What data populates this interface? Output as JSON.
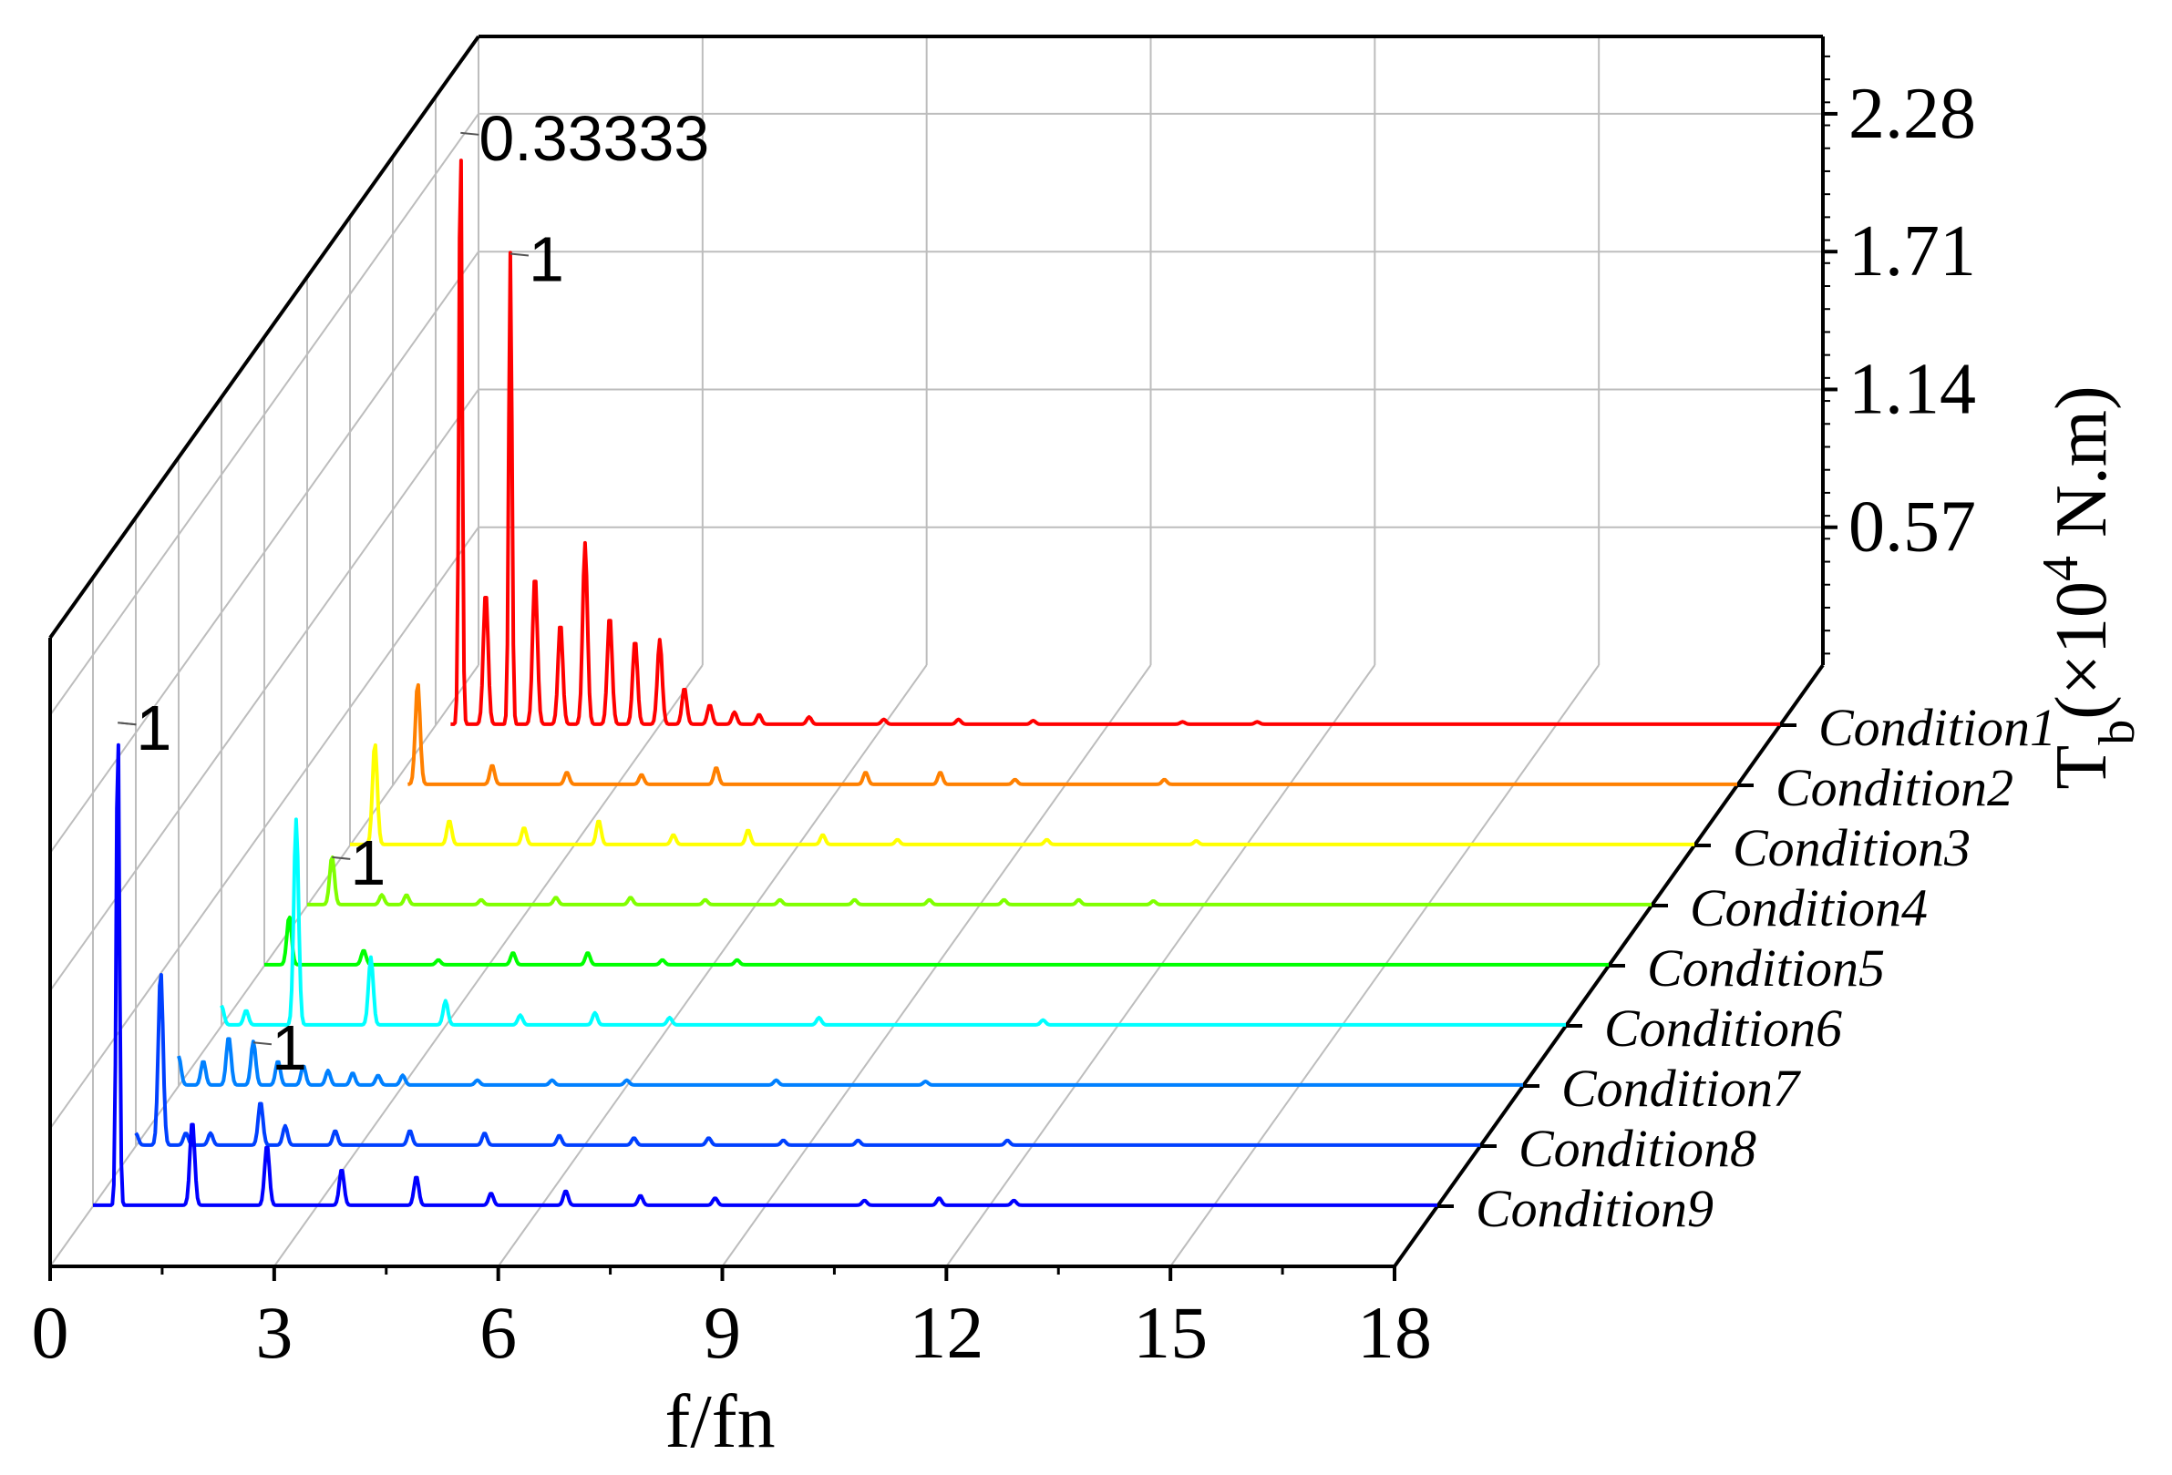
{
  "chart_data": {
    "type": "line",
    "subtype": "3d-waterfall",
    "xlabel": "f/fn",
    "ylabel": {
      "base": "T",
      "subscript": "b",
      "prefix": "(×10",
      "superscript": "4",
      "suffix": " N.m)"
    },
    "x_ticks": [
      "0",
      "3",
      "6",
      "9",
      "12",
      "15",
      "18"
    ],
    "y_ticks": [
      "0.57",
      "1.14",
      "1.71",
      "2.28"
    ],
    "xlim": [
      0,
      18
    ],
    "zlim": [
      0,
      2.6
    ],
    "grid": true,
    "series": [
      {
        "name": "Condition1",
        "color": "#ff0000",
        "peak": {
          "x": 0.33333,
          "y": 2.45
        },
        "start_x": 0.2,
        "peaks": [
          [
            0.33333,
            2.45
          ],
          [
            1,
            1.95
          ],
          [
            0.67,
            0.55
          ],
          [
            1.33,
            0.62
          ],
          [
            1.67,
            0.42
          ],
          [
            2.0,
            0.75
          ],
          [
            2.33,
            0.45
          ],
          [
            2.67,
            0.35
          ],
          [
            3.0,
            0.35
          ],
          [
            3.33,
            0.15
          ],
          [
            3.67,
            0.08
          ],
          [
            4.0,
            0.05
          ],
          [
            4.33,
            0.04
          ],
          [
            5.0,
            0.03
          ],
          [
            6.0,
            0.02
          ],
          [
            7.0,
            0.02
          ],
          [
            8.0,
            0.015
          ],
          [
            10.0,
            0.01
          ],
          [
            11.0,
            0.01
          ]
        ]
      },
      {
        "name": "Condition2",
        "color": "#ff8000",
        "start_x": 0.2,
        "peaks": [
          [
            0.33333,
            0.42
          ],
          [
            1.33,
            0.08
          ],
          [
            2.33,
            0.05
          ],
          [
            3.33,
            0.04
          ],
          [
            4.33,
            0.07
          ],
          [
            6.33,
            0.05
          ],
          [
            7.33,
            0.05
          ],
          [
            8.33,
            0.02
          ],
          [
            10.33,
            0.02
          ]
        ]
      },
      {
        "name": "Condition3",
        "color": "#ffff00",
        "start_x": 0.0,
        "peaks": [
          [
            0.33333,
            0.42
          ],
          [
            1.33,
            0.1
          ],
          [
            2.33,
            0.07
          ],
          [
            3.33,
            0.1
          ],
          [
            4.33,
            0.04
          ],
          [
            5.33,
            0.06
          ],
          [
            6.33,
            0.04
          ],
          [
            7.33,
            0.02
          ],
          [
            9.33,
            0.02
          ],
          [
            11.33,
            0.015
          ]
        ]
      },
      {
        "name": "Condition4",
        "color": "#80ff00",
        "start_x": 0.0,
        "peaks": [
          [
            0.33333,
            0.2
          ],
          [
            1.0,
            0.04
          ],
          [
            1.33,
            0.04
          ],
          [
            2.33,
            0.02
          ],
          [
            3.33,
            0.03
          ],
          [
            4.33,
            0.03
          ],
          [
            5.33,
            0.02
          ],
          [
            6.33,
            0.02
          ],
          [
            7.33,
            0.02
          ],
          [
            8.33,
            0.02
          ],
          [
            9.33,
            0.02
          ],
          [
            10.33,
            0.02
          ],
          [
            11.33,
            0.015
          ]
        ]
      },
      {
        "name": "Condition5",
        "color": "#00ff00",
        "start_x": 0.0,
        "peaks": [
          [
            0.33333,
            0.2
          ],
          [
            1.33,
            0.06
          ],
          [
            2.33,
            0.02
          ],
          [
            3.33,
            0.05
          ],
          [
            4.33,
            0.05
          ],
          [
            5.33,
            0.02
          ],
          [
            6.33,
            0.02
          ]
        ]
      },
      {
        "name": "Condition6",
        "color": "#00ffff",
        "start_x": 0.0,
        "peaks": [
          [
            0.0,
            0.08
          ],
          [
            0.33,
            0.06
          ],
          [
            1.0,
            0.85
          ],
          [
            2.0,
            0.28
          ],
          [
            3.0,
            0.1
          ],
          [
            4.0,
            0.04
          ],
          [
            5.0,
            0.05
          ],
          [
            6.0,
            0.03
          ],
          [
            8.0,
            0.03
          ],
          [
            11.0,
            0.02
          ]
        ]
      },
      {
        "name": "Condition7",
        "color": "#0080ff",
        "start_x": 0.0,
        "peaks": [
          [
            0.0,
            0.12
          ],
          [
            0.33,
            0.1
          ],
          [
            0.67,
            0.2
          ],
          [
            1.0,
            0.18
          ],
          [
            1.33,
            0.1
          ],
          [
            1.67,
            0.08
          ],
          [
            2.0,
            0.06
          ],
          [
            2.33,
            0.05
          ],
          [
            2.67,
            0.04
          ],
          [
            3.0,
            0.04
          ],
          [
            4.0,
            0.02
          ],
          [
            5.0,
            0.02
          ],
          [
            6.0,
            0.02
          ],
          [
            8.0,
            0.02
          ],
          [
            10.0,
            0.015
          ]
        ]
      },
      {
        "name": "Condition8",
        "color": "#0040ff",
        "start_x": 0.0,
        "peaks": [
          [
            0.0,
            0.05
          ],
          [
            0.33333,
            0.72
          ],
          [
            0.67,
            0.05
          ],
          [
            1.0,
            0.05
          ],
          [
            1.67,
            0.18
          ],
          [
            2.0,
            0.08
          ],
          [
            2.67,
            0.06
          ],
          [
            3.67,
            0.06
          ],
          [
            4.67,
            0.05
          ],
          [
            5.67,
            0.04
          ],
          [
            6.67,
            0.03
          ],
          [
            7.67,
            0.03
          ],
          [
            8.67,
            0.02
          ],
          [
            9.67,
            0.02
          ],
          [
            11.67,
            0.02
          ]
        ]
      },
      {
        "name": "Condition9",
        "color": "#0000ff",
        "start_x": 0.0,
        "peaks": [
          [
            0.33333,
            2.0
          ],
          [
            1.33,
            0.35
          ],
          [
            2.33,
            0.25
          ],
          [
            3.33,
            0.15
          ],
          [
            4.33,
            0.12
          ],
          [
            5.33,
            0.05
          ],
          [
            6.33,
            0.06
          ],
          [
            7.33,
            0.04
          ],
          [
            8.33,
            0.03
          ],
          [
            10.33,
            0.02
          ],
          [
            11.33,
            0.03
          ],
          [
            12.33,
            0.02
          ]
        ]
      }
    ],
    "annotations": [
      {
        "text": "0.33333",
        "series": 0,
        "x": 0.33333
      },
      {
        "text": "1",
        "series": 0,
        "x": 1
      },
      {
        "text": "1",
        "series": 9,
        "x": 0.33333
      },
      {
        "text": "1",
        "series": 8,
        "x": 0.33333
      },
      {
        "text": "1",
        "series": 6,
        "x": 1
      },
      {
        "text": "1",
        "series": 3,
        "x": 0.33333
      }
    ]
  }
}
